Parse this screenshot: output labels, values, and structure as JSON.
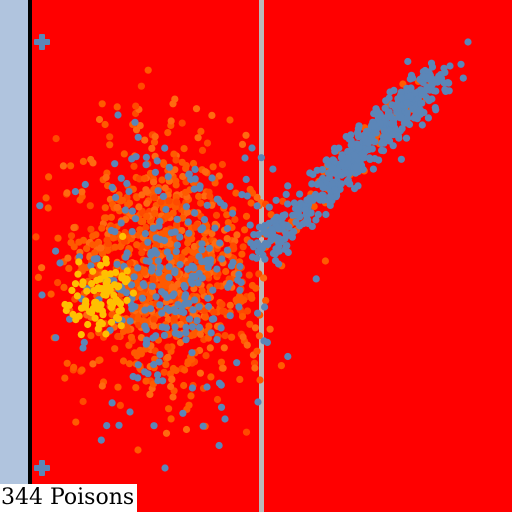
{
  "hud": {
    "score_text": "344 Poisons"
  },
  "colors": {
    "playfield": "#ff0000",
    "left_strip": "#b0c4de",
    "divider": "#b9b9b9",
    "boundary": "#000000",
    "blue_particle": "#5b86b8",
    "orange_particle": "#ff5a00",
    "yellow_particle": "#ffc000"
  },
  "markers": [
    {
      "name": "cross-marker-top-left",
      "icon": "plus-icon"
    },
    {
      "name": "cross-marker-bottom-left",
      "icon": "plus-icon"
    }
  ],
  "particle_groups": [
    {
      "name": "orange-particle-cloud",
      "color": "orange"
    },
    {
      "name": "blue-particle-band",
      "color": "blue"
    },
    {
      "name": "yellow-particle-cluster",
      "color": "yellow"
    }
  ]
}
